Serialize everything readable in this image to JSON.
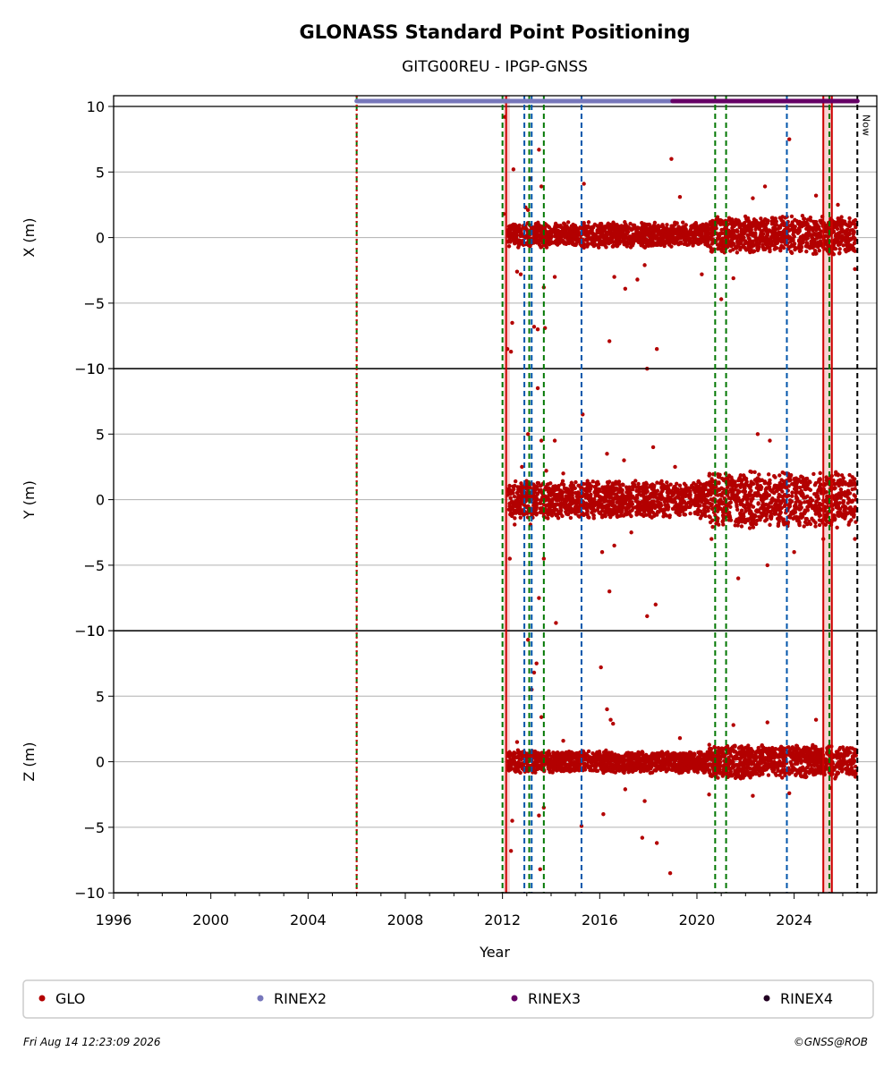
{
  "chart_data": {
    "type": "scatter",
    "title": "GLONASS Standard Point Positioning",
    "subtitle": "GITG00REU - IPGP-GNSS",
    "xlabel": "Year",
    "xlim": [
      1996.0,
      2027.4
    ],
    "x_ticks": [
      "1996",
      "2000",
      "2004",
      "2008",
      "2012",
      "2016",
      "2020",
      "2024"
    ],
    "x_tick_values": [
      1996,
      2000,
      2004,
      2008,
      2012,
      2016,
      2020,
      2024
    ],
    "grid": true,
    "legend_placement": "bottom",
    "panels": [
      {
        "ylabel": "X (m)",
        "ylim": [
          -10,
          10
        ],
        "y_ticks": [
          "10",
          "5",
          "0",
          "−5",
          "−10"
        ],
        "y_tick_values": [
          10,
          5,
          0,
          -5,
          -10
        ],
        "band": {
          "start": 2012.2,
          "end": 2026.55,
          "center": 0.2,
          "half_width": 1.0
        },
        "outliers": [
          [
            2012.1,
            9.2
          ],
          [
            2012.05,
            1.8
          ],
          [
            2012.2,
            -8.5
          ],
          [
            2012.35,
            -8.7
          ],
          [
            2012.4,
            -6.5
          ],
          [
            2012.45,
            5.2
          ],
          [
            2012.6,
            -2.6
          ],
          [
            2012.75,
            -2.8
          ],
          [
            2012.95,
            2.3
          ],
          [
            2013.05,
            2.1
          ],
          [
            2013.15,
            4.5
          ],
          [
            2013.3,
            -6.8
          ],
          [
            2013.45,
            -7.0
          ],
          [
            2013.5,
            6.7
          ],
          [
            2013.6,
            3.9
          ],
          [
            2013.7,
            -3.8
          ],
          [
            2013.75,
            -6.9
          ],
          [
            2014.15,
            -3.0
          ],
          [
            2015.35,
            4.1
          ],
          [
            2016.4,
            -7.9
          ],
          [
            2016.6,
            -3.0
          ],
          [
            2017.05,
            -3.9
          ],
          [
            2017.55,
            -3.2
          ],
          [
            2017.85,
            -2.1
          ],
          [
            2017.95,
            -10.0
          ],
          [
            2018.35,
            -8.5
          ],
          [
            2018.95,
            6.0
          ],
          [
            2019.3,
            3.1
          ],
          [
            2020.2,
            -2.8
          ],
          [
            2021.0,
            -4.7
          ],
          [
            2021.5,
            -3.1
          ],
          [
            2022.3,
            3.0
          ],
          [
            2022.8,
            3.9
          ],
          [
            2023.8,
            7.5
          ],
          [
            2024.9,
            3.2
          ],
          [
            2025.8,
            2.5
          ],
          [
            2026.5,
            -2.4
          ]
        ]
      },
      {
        "ylabel": "Y (m)",
        "ylim": [
          -10,
          10
        ],
        "y_ticks": [
          "10",
          "5",
          "0",
          "−5",
          "−10"
        ],
        "y_tick_values": [
          10,
          5,
          0,
          -5,
          -10
        ],
        "band": {
          "start": 2012.2,
          "end": 2026.55,
          "center": 0.0,
          "half_width": 1.5
        },
        "outliers": [
          [
            2012.3,
            -4.5
          ],
          [
            2012.5,
            -1.9
          ],
          [
            2012.8,
            2.5
          ],
          [
            2013.05,
            5.0
          ],
          [
            2013.15,
            -1.9
          ],
          [
            2013.45,
            8.5
          ],
          [
            2013.5,
            -7.5
          ],
          [
            2013.6,
            4.5
          ],
          [
            2013.7,
            -4.5
          ],
          [
            2013.8,
            2.2
          ],
          [
            2014.15,
            4.5
          ],
          [
            2014.2,
            -9.4
          ],
          [
            2014.5,
            2.0
          ],
          [
            2015.3,
            6.5
          ],
          [
            2016.1,
            -4.0
          ],
          [
            2016.3,
            3.5
          ],
          [
            2016.4,
            -7.0
          ],
          [
            2016.6,
            -3.5
          ],
          [
            2017.0,
            3.0
          ],
          [
            2017.3,
            -2.5
          ],
          [
            2018.2,
            4.0
          ],
          [
            2018.3,
            -8.0
          ],
          [
            2019.1,
            2.5
          ],
          [
            2020.6,
            -3.0
          ],
          [
            2021.7,
            -6.0
          ],
          [
            2022.5,
            5.0
          ],
          [
            2022.9,
            -5.0
          ],
          [
            2023.0,
            4.5
          ],
          [
            2024.0,
            -4.0
          ],
          [
            2025.2,
            -3.0
          ],
          [
            2026.5,
            -3.0
          ]
        ]
      },
      {
        "ylabel": "Z (m)",
        "ylim": [
          -10,
          10
        ],
        "y_ticks": [
          "10",
          "5",
          "0",
          "−5",
          "−10"
        ],
        "y_tick_values": [
          10,
          5,
          0,
          -5,
          -10
        ],
        "band": {
          "start": 2012.2,
          "end": 2026.55,
          "center": 0.0,
          "half_width": 0.9
        },
        "outliers": [
          [
            2012.35,
            -6.8
          ],
          [
            2012.4,
            -4.5
          ],
          [
            2012.6,
            1.5
          ],
          [
            2013.05,
            9.3
          ],
          [
            2013.2,
            5.5
          ],
          [
            2013.3,
            6.8
          ],
          [
            2013.4,
            7.5
          ],
          [
            2013.5,
            -4.1
          ],
          [
            2013.55,
            -8.2
          ],
          [
            2013.6,
            3.4
          ],
          [
            2013.7,
            -3.5
          ],
          [
            2014.5,
            1.6
          ],
          [
            2015.25,
            -4.9
          ],
          [
            2016.05,
            7.2
          ],
          [
            2016.15,
            -4.0
          ],
          [
            2016.3,
            4.0
          ],
          [
            2016.45,
            3.2
          ],
          [
            2016.55,
            2.9
          ],
          [
            2017.05,
            -2.1
          ],
          [
            2017.75,
            -5.8
          ],
          [
            2017.85,
            -3.0
          ],
          [
            2017.95,
            11.1
          ],
          [
            2018.35,
            -6.2
          ],
          [
            2018.9,
            -8.5
          ],
          [
            2019.3,
            1.8
          ],
          [
            2020.5,
            -2.5
          ],
          [
            2021.5,
            2.8
          ],
          [
            2022.3,
            -2.6
          ],
          [
            2022.9,
            3.0
          ],
          [
            2023.8,
            -2.4
          ],
          [
            2024.9,
            3.2
          ],
          [
            2025.5,
            -2.0
          ]
        ]
      }
    ],
    "vertical_lines": [
      {
        "x": 2006.0,
        "color": "#007700",
        "style": "dashed"
      },
      {
        "x": 2006.0,
        "color": "#cc0000",
        "style": "dotted"
      },
      {
        "x": 2012.0,
        "color": "#007700",
        "style": "dashed"
      },
      {
        "x": 2012.15,
        "color": "#cc0000",
        "style": "solid"
      },
      {
        "x": 2012.9,
        "color": "#0055aa",
        "style": "dashed"
      },
      {
        "x": 2013.1,
        "color": "#007700",
        "style": "dashed"
      },
      {
        "x": 2013.2,
        "color": "#0055aa",
        "style": "dashed"
      },
      {
        "x": 2013.7,
        "color": "#007700",
        "style": "dashed"
      },
      {
        "x": 2015.25,
        "color": "#0055aa",
        "style": "dashed"
      },
      {
        "x": 2020.75,
        "color": "#007700",
        "style": "dashed"
      },
      {
        "x": 2021.2,
        "color": "#007700",
        "style": "dashed"
      },
      {
        "x": 2023.7,
        "color": "#0055aa",
        "style": "dashed"
      },
      {
        "x": 2025.2,
        "color": "#cc0000",
        "style": "solid"
      },
      {
        "x": 2025.45,
        "color": "#007700",
        "style": "dashed"
      },
      {
        "x": 2025.55,
        "color": "#cc0000",
        "style": "solid"
      },
      {
        "x": 2026.6,
        "color": "#000000",
        "style": "dashed"
      }
    ],
    "red_spans": [
      [
        2012.05,
        2012.3
      ],
      [
        2025.15,
        2025.6
      ]
    ],
    "now_line": {
      "x": 2026.6,
      "label": "Now"
    },
    "rinex_bars": [
      {
        "name": "RINEX2",
        "start": 2006.0,
        "end": 2026.6,
        "color": "#7777bb"
      },
      {
        "name": "RINEX3",
        "start": 2019.0,
        "end": 2026.6,
        "color": "#660066"
      }
    ],
    "series": [
      {
        "name": "GLO",
        "color": "#b30000"
      },
      {
        "name": "RINEX2",
        "color": "#7777bb"
      },
      {
        "name": "RINEX3",
        "color": "#660066"
      },
      {
        "name": "RINEX4",
        "color": "#220022"
      }
    ]
  },
  "footer": {
    "timestamp": "Fri Aug 14 12:23:09 2026",
    "credit": "©GNSS@ROB"
  }
}
